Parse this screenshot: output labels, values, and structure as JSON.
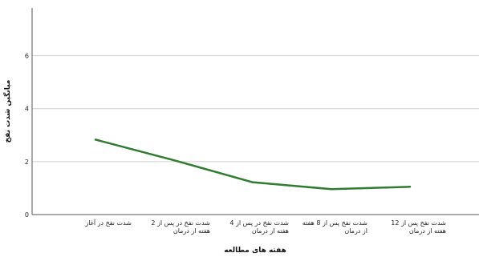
{
  "chart_data": {
    "type": "line",
    "title": "",
    "xlabel": "هفته های مطالعه",
    "ylabel": "میانگین شدت نفخ",
    "categories": [
      [
        "شدت نفخ در آغاز"
      ],
      [
        "شدت نفخ در پس از 2",
        "هفته از درمان"
      ],
      [
        "شدت نفخ در پس از 4",
        "هفته از درمان"
      ],
      [
        "شدت نفخ پس از 8 هفته",
        "از درمان"
      ],
      [
        "شدت نفخ پس از 12",
        "هفته از درمان"
      ]
    ],
    "series": [
      {
        "values": [
          2.83,
          2.05,
          1.22,
          0.96,
          1.05
        ],
        "color": "#2e7d2e"
      }
    ],
    "ylim": [
      0,
      7.8
    ],
    "yticks": [
      0,
      2,
      4,
      6
    ],
    "grid": true
  }
}
